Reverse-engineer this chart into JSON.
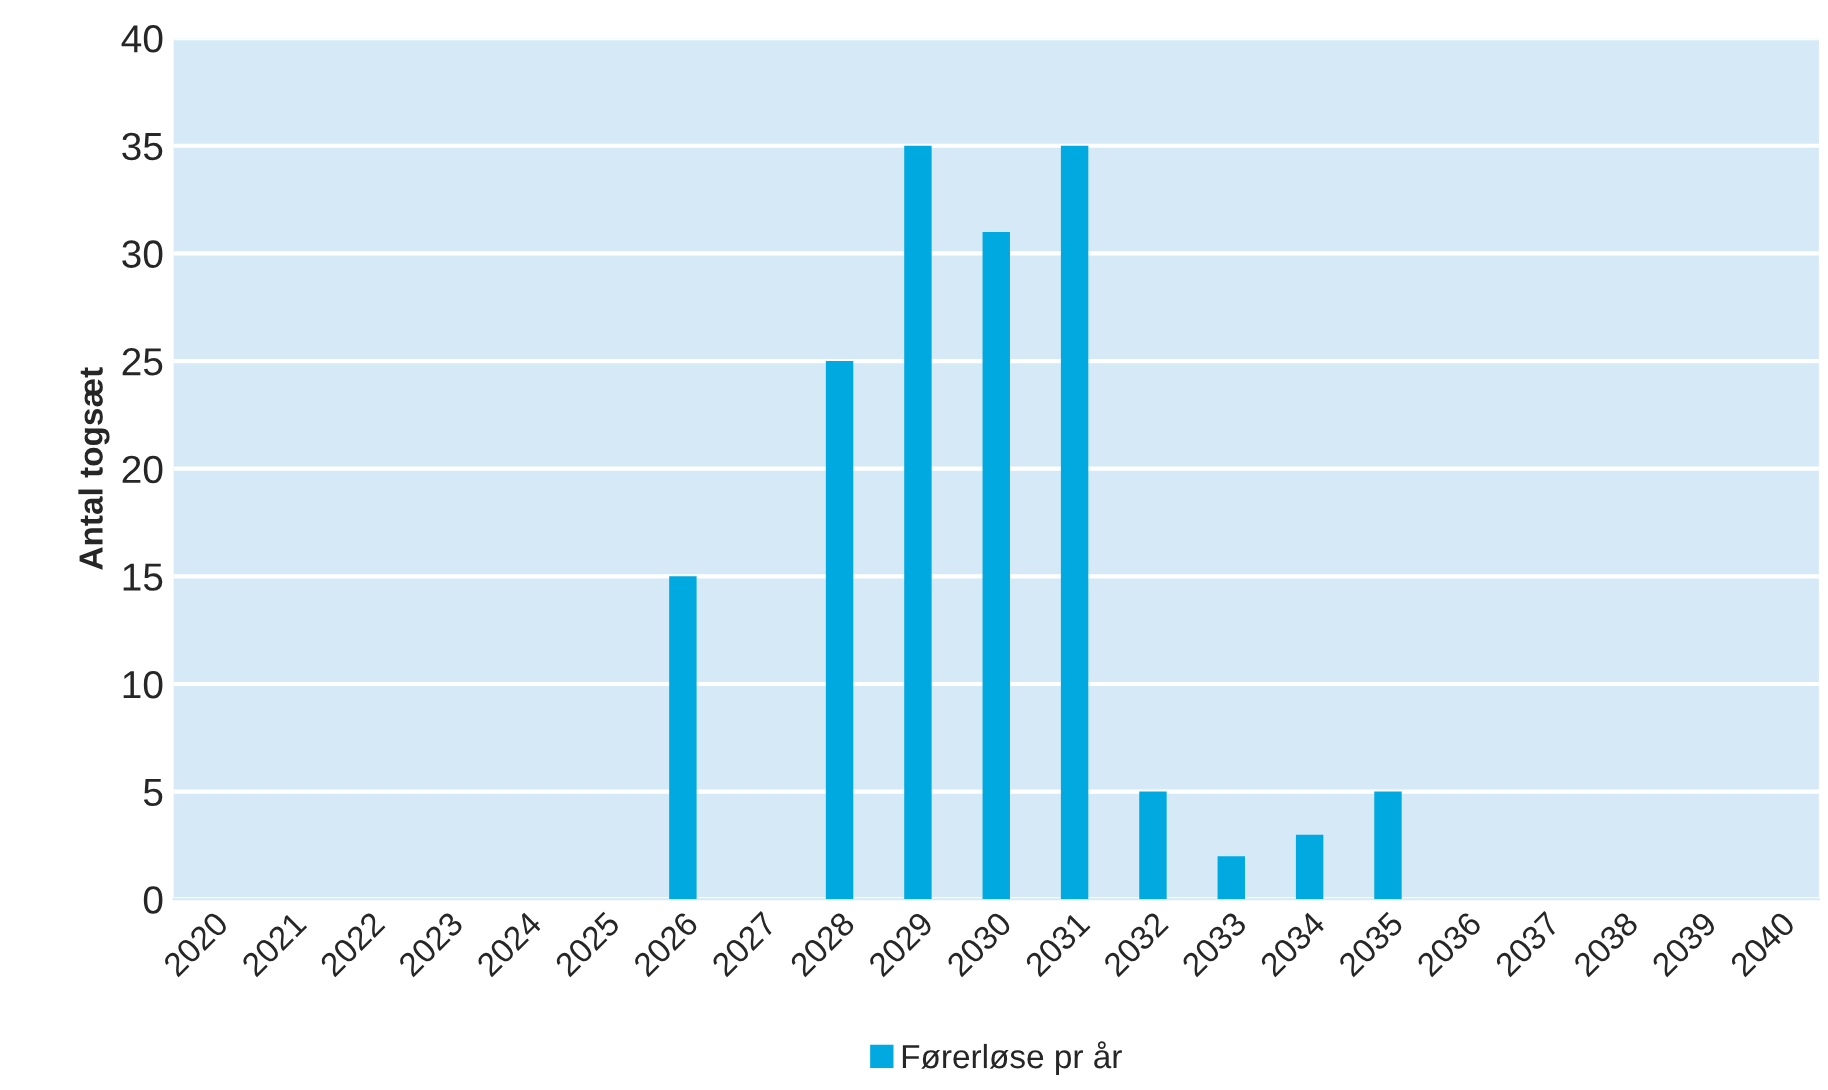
{
  "chart_data": {
    "type": "bar",
    "ylabel": "Antal togsæt",
    "categories": [
      "2020",
      "2021",
      "2022",
      "2023",
      "2024",
      "2025",
      "2026",
      "2027",
      "2028",
      "2029",
      "2030",
      "2031",
      "2032",
      "2033",
      "2034",
      "2035",
      "2036",
      "2037",
      "2038",
      "2039",
      "2040"
    ],
    "series": [
      {
        "name": "Førerløse pr år",
        "color": "#00a9e0",
        "values": [
          0,
          0,
          0,
          0,
          0,
          0,
          15,
          0,
          25,
          35,
          31,
          35,
          5,
          2,
          3,
          5,
          0,
          0,
          0,
          0,
          0
        ]
      }
    ],
    "ylim": [
      0,
      40
    ],
    "yticks": [
      0,
      5,
      10,
      15,
      20,
      25,
      30,
      35,
      40
    ],
    "grid": "y",
    "legend": "bottom"
  }
}
